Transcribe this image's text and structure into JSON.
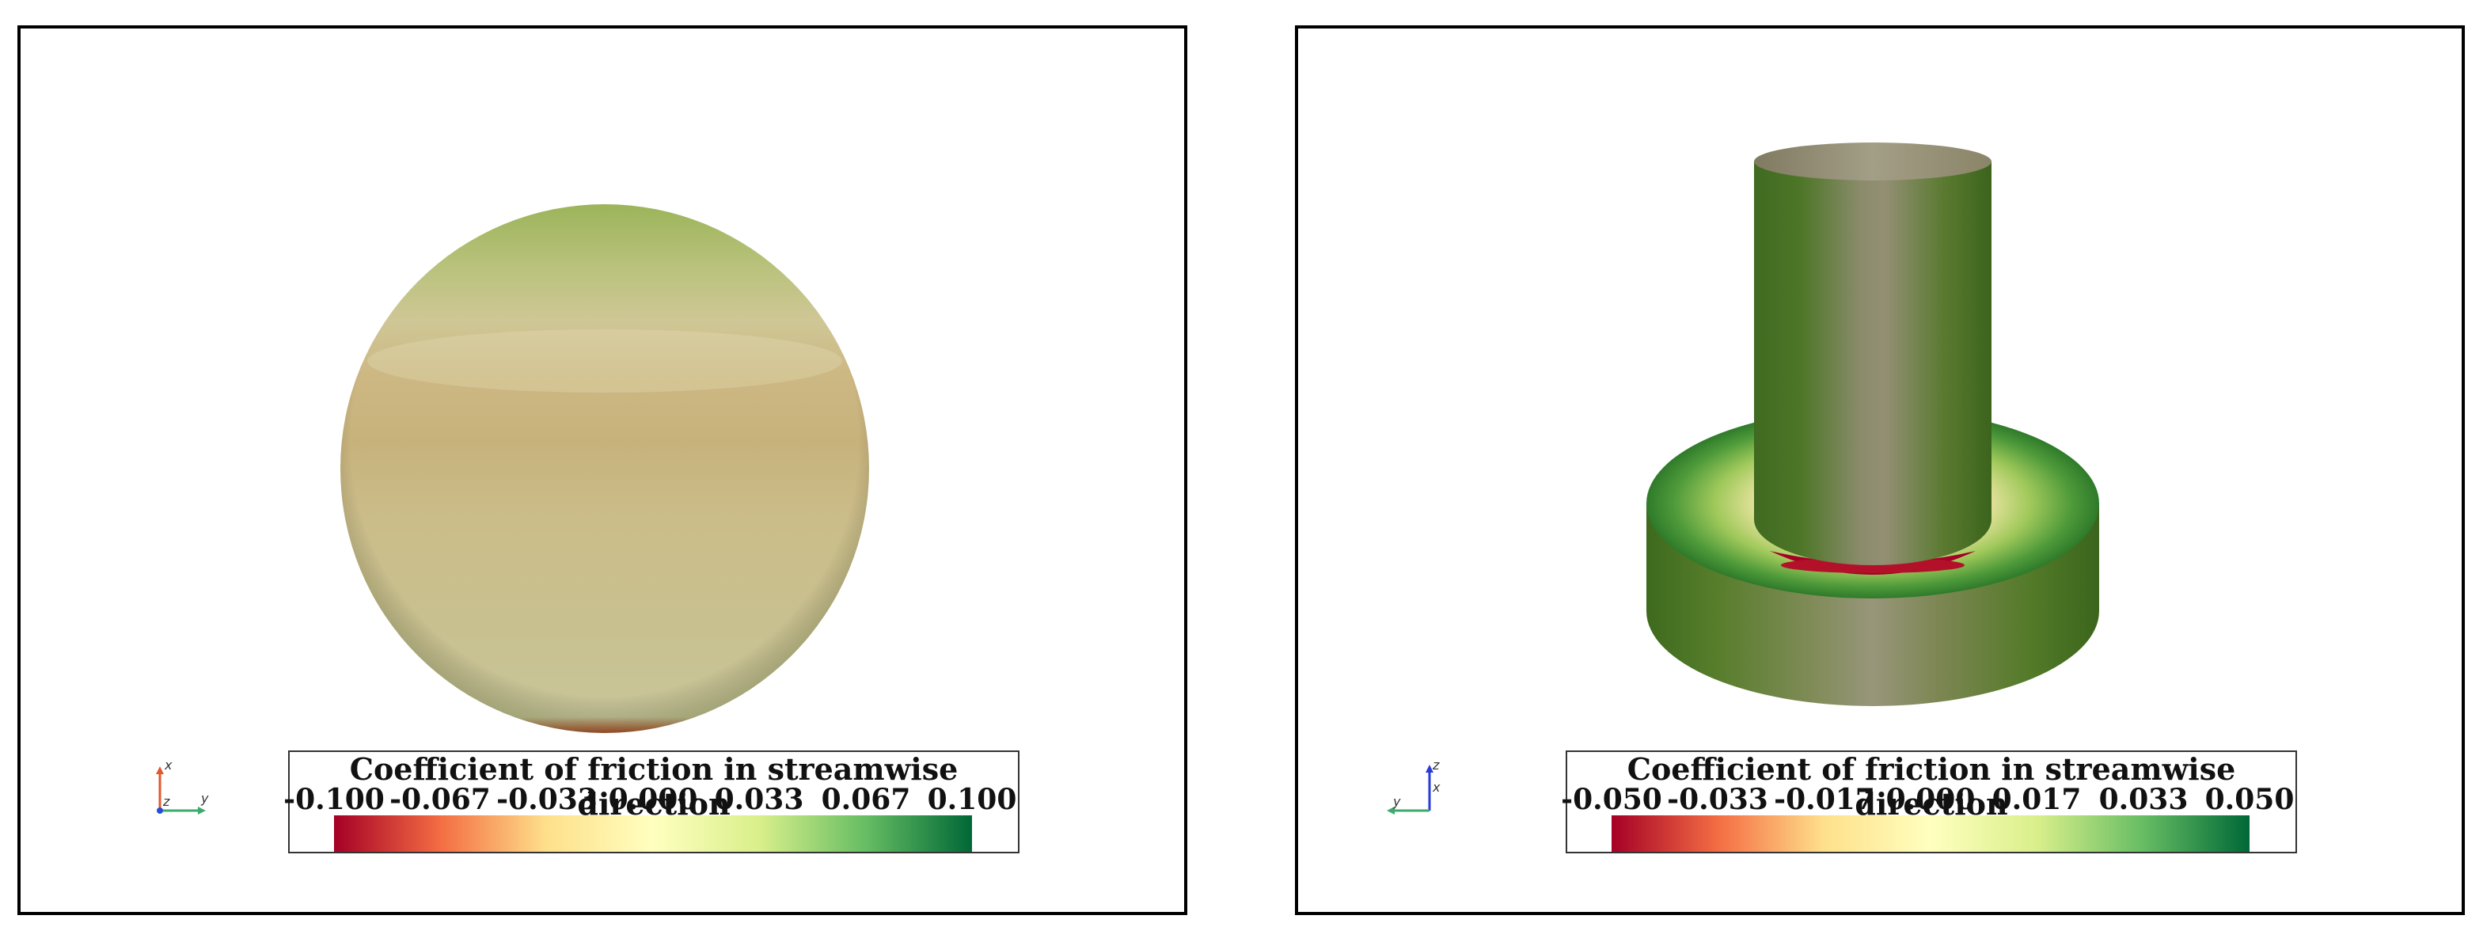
{
  "panels": [
    {
      "id": "sphere",
      "legend": {
        "title": "Coefficient of friction in streamwise direction",
        "ticks": [
          "-0.100",
          "-0.067",
          "-0.033",
          "0.000",
          "0.033",
          "0.067",
          "0.100"
        ]
      },
      "axes": {
        "labels": [
          "x",
          "z",
          "y"
        ]
      }
    },
    {
      "id": "cylinder",
      "legend": {
        "title": "Coefficient of friction in streamwise direction",
        "ticks": [
          "-0.050",
          "-0.033",
          "-0.017",
          "0.000",
          "0.017",
          "0.033",
          "0.050"
        ]
      },
      "axes": {
        "labels": [
          "z",
          "x",
          "y"
        ]
      }
    }
  ],
  "colormap": {
    "name": "red-yellow-green",
    "stops": [
      "#a50026",
      "#f46d43",
      "#fee08b",
      "#ffffbf",
      "#d9ef8b",
      "#66bd63",
      "#006837"
    ]
  }
}
